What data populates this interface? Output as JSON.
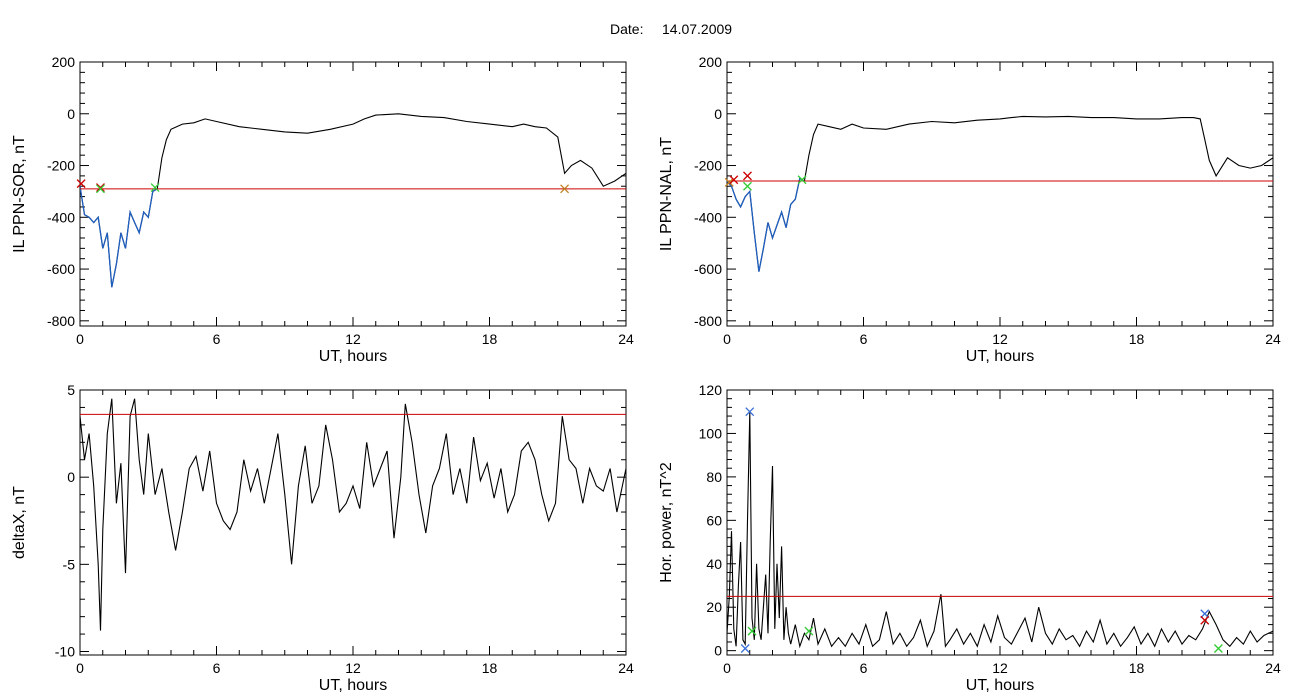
{
  "header": {
    "date_label": "Date:",
    "date_value": "14.07.2009"
  },
  "colors": {
    "trace": "#000000",
    "highlight": "#1f5fbf",
    "threshold": "#cc0000",
    "marker_red": "#cc0000",
    "marker_green": "#33cc33",
    "marker_blue": "#3a6fd8",
    "marker_orange": "#c08020"
  },
  "chart_data": [
    {
      "id": "sor",
      "type": "line",
      "xlabel": "UT, hours",
      "ylabel": "IL PPN-SOR, nT",
      "xlim": [
        0,
        24
      ],
      "ylim": [
        -820,
        200
      ],
      "xticks": [
        0,
        6,
        12,
        18,
        24
      ],
      "yticks": [
        200,
        0,
        -200,
        -400,
        -600,
        -800
      ],
      "threshold": -290,
      "highlight_range": [
        0,
        3.4
      ],
      "series": [
        {
          "x": [
            0,
            0.2,
            0.4,
            0.6,
            0.8,
            1.0,
            1.2,
            1.4,
            1.6,
            1.8,
            2.0,
            2.2,
            2.4,
            2.6,
            2.8,
            3.0,
            3.2,
            3.4,
            3.6,
            3.8,
            4.0,
            4.5,
            5.0,
            5.5,
            6.0,
            7.0,
            8.0,
            9.0,
            10.0,
            11.0,
            12.0,
            12.5,
            13.0,
            14.0,
            15.0,
            16.0,
            17.0,
            18.0,
            19.0,
            19.5,
            20.0,
            20.5,
            21.0,
            21.3,
            21.6,
            22.0,
            22.5,
            23.0,
            23.5,
            24.0
          ],
          "y": [
            -280,
            -390,
            -400,
            -420,
            -400,
            -520,
            -460,
            -670,
            -580,
            -460,
            -520,
            -380,
            -420,
            -460,
            -380,
            -400,
            -300,
            -290,
            -170,
            -100,
            -60,
            -40,
            -35,
            -20,
            -30,
            -50,
            -60,
            -70,
            -75,
            -60,
            -40,
            -20,
            -5,
            0,
            -10,
            -15,
            -30,
            -40,
            -50,
            -40,
            -50,
            -55,
            -90,
            -230,
            -200,
            -180,
            -210,
            -280,
            -260,
            -230
          ]
        }
      ],
      "markers": [
        {
          "x": 0.05,
          "y": -270,
          "color": "marker_red"
        },
        {
          "x": 0.9,
          "y": -285,
          "color": "marker_red"
        },
        {
          "x": 0.9,
          "y": -290,
          "color": "marker_green"
        },
        {
          "x": 3.3,
          "y": -285,
          "color": "marker_green"
        },
        {
          "x": 21.3,
          "y": -290,
          "color": "marker_orange"
        }
      ]
    },
    {
      "id": "nal",
      "type": "line",
      "xlabel": "UT, hours",
      "ylabel": "IL PPN-NAL, nT",
      "xlim": [
        0,
        24
      ],
      "ylim": [
        -820,
        200
      ],
      "xticks": [
        0,
        6,
        12,
        18,
        24
      ],
      "yticks": [
        200,
        0,
        -200,
        -400,
        -600,
        -800
      ],
      "threshold": -260,
      "highlight_range": [
        0,
        3.4
      ],
      "series": [
        {
          "x": [
            0,
            0.2,
            0.4,
            0.6,
            0.8,
            1.0,
            1.2,
            1.4,
            1.6,
            1.8,
            2.0,
            2.2,
            2.4,
            2.6,
            2.8,
            3.0,
            3.2,
            3.4,
            3.6,
            3.8,
            4.0,
            4.5,
            5.0,
            5.5,
            6.0,
            7.0,
            8.0,
            9.0,
            10.0,
            11.0,
            12.0,
            12.5,
            13.0,
            14.0,
            15.0,
            16.0,
            17.0,
            18.0,
            19.0,
            20.0,
            20.5,
            20.8,
            21.0,
            21.2,
            21.5,
            22.0,
            22.5,
            23.0,
            23.5,
            24.0
          ],
          "y": [
            -260,
            -280,
            -330,
            -360,
            -320,
            -300,
            -460,
            -610,
            -520,
            -420,
            -480,
            -430,
            -380,
            -440,
            -350,
            -330,
            -250,
            -260,
            -160,
            -80,
            -40,
            -50,
            -60,
            -40,
            -55,
            -60,
            -40,
            -30,
            -35,
            -25,
            -20,
            -15,
            -10,
            -12,
            -10,
            -15,
            -15,
            -20,
            -20,
            -15,
            -15,
            -20,
            -100,
            -180,
            -240,
            -170,
            -200,
            -210,
            -200,
            -170
          ]
        }
      ],
      "markers": [
        {
          "x": 0.1,
          "y": -265,
          "color": "marker_orange"
        },
        {
          "x": 0.3,
          "y": -255,
          "color": "marker_red"
        },
        {
          "x": 0.9,
          "y": -240,
          "color": "marker_red"
        },
        {
          "x": 0.9,
          "y": -280,
          "color": "marker_green"
        },
        {
          "x": 3.3,
          "y": -255,
          "color": "marker_green"
        }
      ]
    },
    {
      "id": "deltax",
      "type": "line",
      "xlabel": "UT, hours",
      "ylabel": "deltaX, nT",
      "xlim": [
        0,
        24
      ],
      "ylim": [
        -10.2,
        5
      ],
      "xticks": [
        0,
        6,
        12,
        18,
        24
      ],
      "yticks": [
        5,
        0,
        -5,
        -10
      ],
      "threshold": 3.6,
      "series": [
        {
          "x": [
            0,
            0.2,
            0.4,
            0.6,
            0.8,
            0.9,
            1.0,
            1.2,
            1.4,
            1.6,
            1.8,
            2.0,
            2.2,
            2.4,
            2.6,
            2.8,
            3.0,
            3.3,
            3.6,
            3.9,
            4.2,
            4.5,
            4.8,
            5.1,
            5.4,
            5.7,
            6.0,
            6.3,
            6.6,
            6.9,
            7.2,
            7.5,
            7.8,
            8.1,
            8.4,
            8.7,
            9.0,
            9.3,
            9.6,
            9.9,
            10.2,
            10.5,
            10.8,
            11.1,
            11.4,
            11.7,
            12.0,
            12.3,
            12.6,
            12.9,
            13.2,
            13.5,
            13.8,
            14.1,
            14.3,
            14.6,
            14.9,
            15.2,
            15.5,
            15.8,
            16.1,
            16.4,
            16.7,
            17.0,
            17.3,
            17.6,
            17.9,
            18.2,
            18.5,
            18.8,
            19.1,
            19.4,
            19.7,
            20.0,
            20.3,
            20.6,
            20.9,
            21.2,
            21.5,
            21.8,
            22.1,
            22.4,
            22.7,
            23.0,
            23.3,
            23.6,
            24.0
          ],
          "y": [
            3.5,
            1.0,
            2.5,
            -0.5,
            -5.0,
            -8.8,
            -3.0,
            2.5,
            4.5,
            -1.5,
            0.8,
            -5.5,
            3.5,
            4.5,
            1.0,
            -1.0,
            2.5,
            -1.0,
            0.5,
            -2.0,
            -4.2,
            -2.0,
            0.5,
            1.2,
            -0.8,
            1.5,
            -1.5,
            -2.5,
            -3.0,
            -2.0,
            1.0,
            -0.8,
            0.5,
            -1.5,
            0.5,
            2.5,
            -1.0,
            -5.0,
            -0.5,
            1.8,
            -1.5,
            -0.5,
            3.0,
            1.0,
            -2.0,
            -1.5,
            -0.5,
            -1.8,
            2.0,
            -0.5,
            0.5,
            1.5,
            -3.5,
            0.0,
            4.2,
            2.0,
            -1.0,
            -3.2,
            -0.5,
            0.5,
            2.5,
            -1.0,
            0.5,
            -1.5,
            2.3,
            -0.2,
            0.8,
            -1.2,
            0.5,
            -2.0,
            -1.0,
            1.5,
            2.0,
            1.0,
            -1.0,
            -2.5,
            -1.5,
            3.5,
            1.0,
            0.5,
            -1.5,
            0.5,
            -0.5,
            -0.8,
            0.5,
            -2.0,
            0.5
          ]
        }
      ],
      "markers": []
    },
    {
      "id": "power",
      "type": "line",
      "xlabel": "UT, hours",
      "ylabel": "Hor. power, nT^2",
      "xlim": [
        0,
        24
      ],
      "ylim": [
        -2,
        120
      ],
      "xticks": [
        0,
        6,
        12,
        18,
        24
      ],
      "yticks": [
        120,
        100,
        80,
        60,
        40,
        20,
        0
      ],
      "threshold": 25,
      "series": [
        {
          "x": [
            0,
            0.1,
            0.2,
            0.3,
            0.4,
            0.5,
            0.6,
            0.7,
            0.8,
            0.9,
            1.0,
            1.1,
            1.2,
            1.3,
            1.4,
            1.5,
            1.6,
            1.7,
            1.8,
            1.9,
            2.0,
            2.1,
            2.2,
            2.3,
            2.4,
            2.5,
            2.6,
            2.7,
            2.8,
            3.0,
            3.2,
            3.4,
            3.6,
            3.8,
            4.0,
            4.3,
            4.6,
            4.9,
            5.2,
            5.5,
            5.8,
            6.1,
            6.4,
            6.7,
            7.0,
            7.3,
            7.6,
            7.9,
            8.2,
            8.5,
            8.8,
            9.1,
            9.4,
            9.6,
            9.8,
            10.1,
            10.4,
            10.7,
            11.0,
            11.3,
            11.6,
            11.9,
            12.2,
            12.5,
            12.8,
            13.1,
            13.4,
            13.7,
            14.0,
            14.3,
            14.6,
            14.9,
            15.2,
            15.5,
            15.8,
            16.1,
            16.4,
            16.7,
            17.0,
            17.3,
            17.6,
            17.9,
            18.2,
            18.5,
            18.8,
            19.1,
            19.4,
            19.7,
            20.0,
            20.3,
            20.6,
            20.9,
            21.2,
            21.5,
            21.8,
            22.1,
            22.4,
            22.7,
            23.0,
            23.3,
            23.6,
            24.0
          ],
          "y": [
            8,
            25,
            55,
            10,
            2,
            30,
            50,
            5,
            3,
            60,
            110,
            15,
            5,
            40,
            10,
            5,
            20,
            35,
            8,
            50,
            85,
            10,
            40,
            15,
            48,
            5,
            20,
            8,
            3,
            12,
            2,
            8,
            5,
            15,
            3,
            10,
            2,
            6,
            2,
            8,
            3,
            12,
            2,
            5,
            18,
            3,
            8,
            2,
            6,
            14,
            2,
            9,
            26,
            2,
            5,
            10,
            3,
            8,
            2,
            12,
            4,
            16,
            6,
            3,
            9,
            15,
            4,
            20,
            8,
            3,
            10,
            5,
            7,
            2,
            9,
            4,
            14,
            3,
            8,
            2,
            6,
            11,
            3,
            8,
            2,
            10,
            4,
            9,
            3,
            7,
            5,
            10,
            18,
            12,
            5,
            2,
            6,
            3,
            9,
            4,
            7,
            9
          ]
        }
      ],
      "markers": [
        {
          "x": 1.0,
          "y": 110,
          "color": "marker_blue"
        },
        {
          "x": 1.1,
          "y": 9,
          "color": "marker_green"
        },
        {
          "x": 0.8,
          "y": 1,
          "color": "marker_blue"
        },
        {
          "x": 3.6,
          "y": 9,
          "color": "marker_green"
        },
        {
          "x": 21.0,
          "y": 17,
          "color": "marker_blue"
        },
        {
          "x": 21.0,
          "y": 14,
          "color": "marker_red"
        },
        {
          "x": 21.6,
          "y": 1,
          "color": "marker_green"
        }
      ]
    }
  ]
}
